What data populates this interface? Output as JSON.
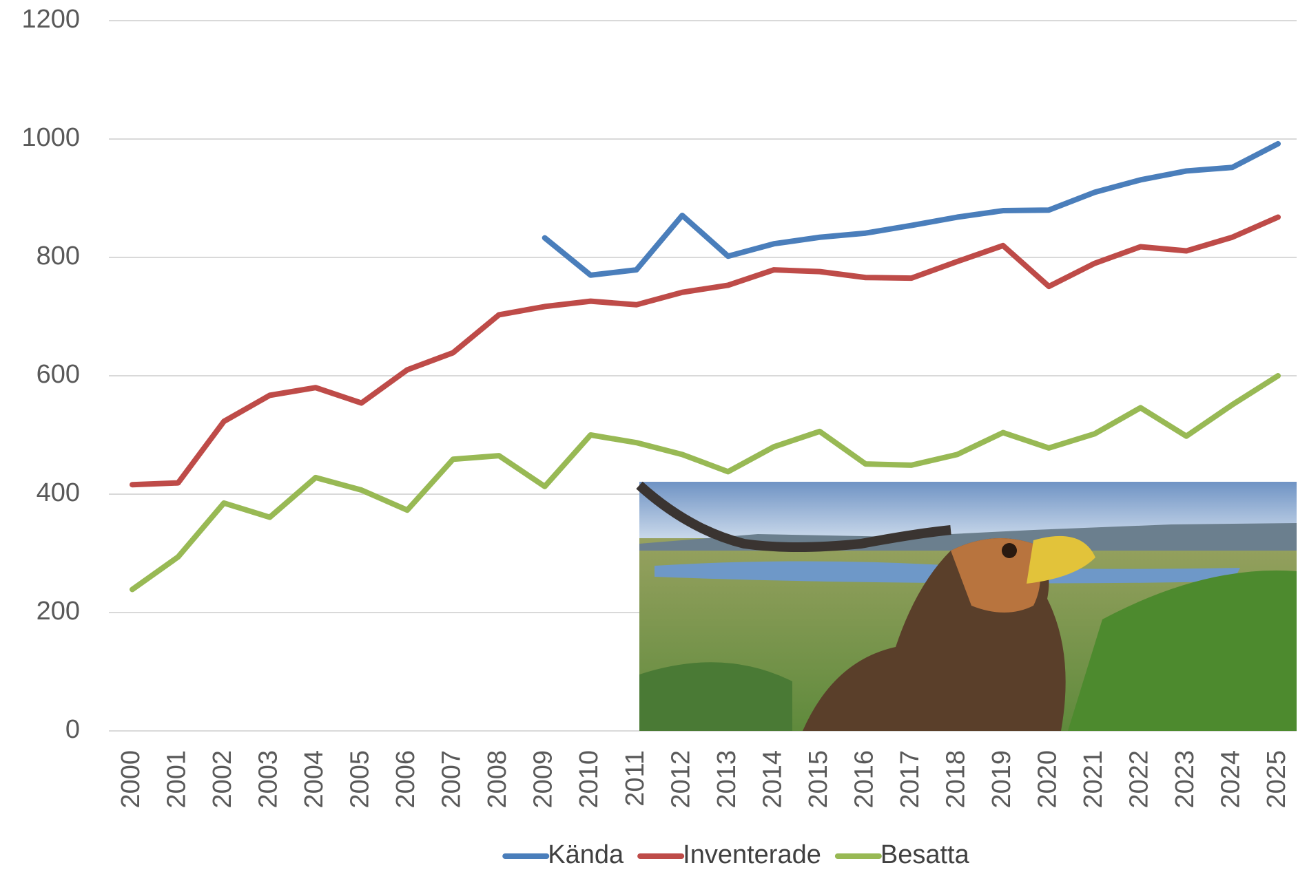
{
  "chart_data": {
    "type": "line",
    "categories": [
      "2000",
      "2001",
      "2002",
      "2003",
      "2004",
      "2005",
      "2006",
      "2007",
      "2008",
      "2009",
      "2010",
      "2011",
      "2012",
      "2013",
      "2014",
      "2015",
      "2016",
      "2017",
      "2018",
      "2019",
      "2020",
      "2021",
      "2022",
      "2023",
      "2024",
      "2025"
    ],
    "series": [
      {
        "name": "Kända",
        "color": "#4a7ebb",
        "values": [
          null,
          null,
          null,
          null,
          null,
          null,
          null,
          null,
          null,
          833,
          770,
          779,
          871,
          802,
          823,
          834,
          841,
          854,
          868,
          879,
          880,
          910,
          931,
          946,
          952,
          992
        ]
      },
      {
        "name": "Inventerade",
        "color": "#be4b48",
        "values": [
          416,
          419,
          523,
          567,
          580,
          554,
          610,
          639,
          703,
          717,
          726,
          720,
          741,
          753,
          779,
          776,
          766,
          765,
          793,
          820,
          751,
          790,
          818,
          811,
          834,
          868
        ]
      },
      {
        "name": "Besatta",
        "color": "#98b954",
        "values": [
          239,
          294,
          385,
          361,
          428,
          407,
          373,
          459,
          465,
          413,
          500,
          487,
          467,
          438,
          480,
          506,
          451,
          449,
          467,
          504,
          478,
          502,
          546,
          498,
          551,
          600
        ]
      }
    ],
    "ylim": [
      0,
      1200
    ],
    "yticks": [
      0,
      200,
      400,
      600,
      800,
      1000,
      1200
    ],
    "grid": true,
    "legend": "bottom"
  }
}
